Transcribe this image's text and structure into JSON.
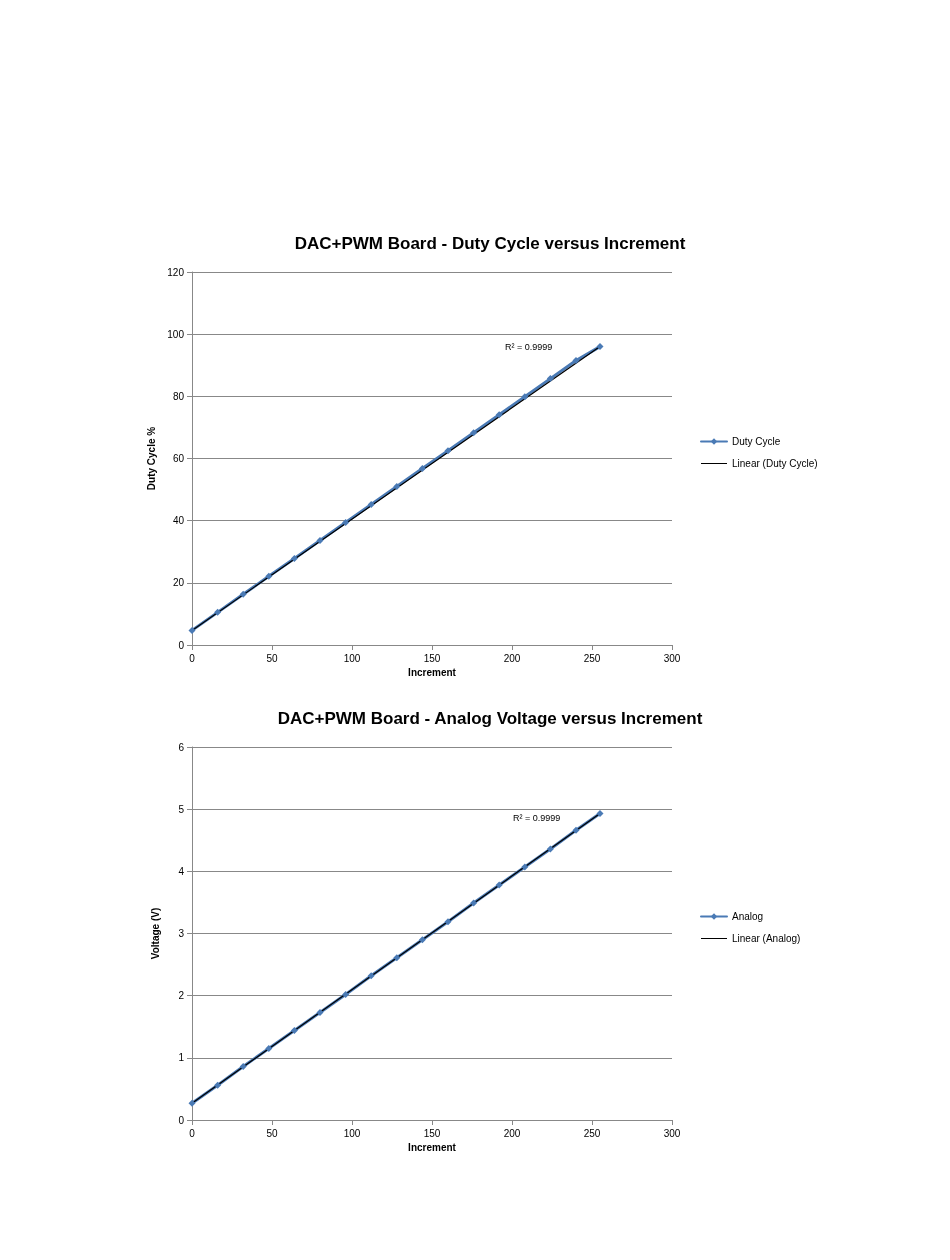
{
  "chart_data": [
    {
      "type": "line",
      "title": "DAC+PWM Board - Duty Cycle versus Increment",
      "xlabel": "Increment",
      "ylabel": "Duty Cycle %",
      "xlim": [
        0,
        300
      ],
      "xticks": [
        0,
        50,
        100,
        150,
        200,
        250,
        300
      ],
      "ylim": [
        0,
        120
      ],
      "yticks": [
        0,
        20,
        40,
        60,
        80,
        100,
        120
      ],
      "grid": "y",
      "legend": "right",
      "marker": "diamond",
      "line_style": "solid",
      "annotations": [
        "R² = 0.9999"
      ],
      "series": [
        {
          "name": "Duty Cycle",
          "color": "#4a7ab5",
          "x": [
            0,
            16,
            32,
            48,
            64,
            80,
            96,
            112,
            128,
            144,
            160,
            176,
            192,
            208,
            224,
            240,
            255
          ],
          "values": [
            4.7,
            10.5,
            16.3,
            22.1,
            27.8,
            33.6,
            39.4,
            45.2,
            51,
            56.8,
            62.5,
            68.3,
            74.1,
            79.9,
            85.7,
            91.5,
            96
          ]
        },
        {
          "name": "Linear (Duty Cycle)",
          "color": "#000000",
          "marker": "none",
          "x": [
            0,
            255
          ],
          "values": [
            4.7,
            96
          ]
        }
      ]
    },
    {
      "type": "line",
      "title": "DAC+PWM Board - Analog Voltage versus Increment",
      "xlabel": "Increment",
      "ylabel": "Voltage (V)",
      "xlim": [
        0,
        300
      ],
      "xticks": [
        0,
        50,
        100,
        150,
        200,
        250,
        300
      ],
      "ylim": [
        0,
        6
      ],
      "yticks": [
        0,
        1,
        2,
        3,
        4,
        5,
        6
      ],
      "grid": "y",
      "legend": "right",
      "marker": "diamond",
      "line_style": "solid",
      "annotations": [
        "R² = 0.9999"
      ],
      "series": [
        {
          "name": "Analog",
          "color": "#4a7ab5",
          "x": [
            0,
            16,
            32,
            48,
            64,
            80,
            96,
            112,
            128,
            144,
            160,
            176,
            192,
            208,
            224,
            240,
            255
          ],
          "values": [
            0.27,
            0.56,
            0.86,
            1.15,
            1.44,
            1.73,
            2.02,
            2.32,
            2.61,
            2.9,
            3.19,
            3.49,
            3.78,
            4.07,
            4.36,
            4.66,
            4.93
          ]
        },
        {
          "name": "Linear (Analog)",
          "color": "#000000",
          "marker": "none",
          "x": [
            0,
            255
          ],
          "values": [
            0.27,
            4.93
          ]
        }
      ]
    }
  ]
}
